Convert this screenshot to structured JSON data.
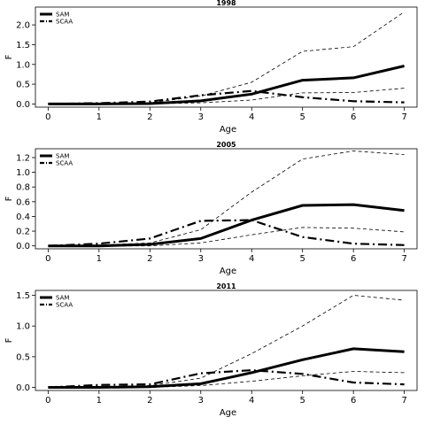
{
  "chart_data": [
    {
      "type": "line",
      "title": "1998",
      "xlabel": "Age",
      "ylabel": "F",
      "x": [
        0,
        1,
        2,
        3,
        4,
        5,
        6,
        7
      ],
      "xlim": [
        -0.25,
        7.25
      ],
      "ylim": [
        -0.08,
        2.45
      ],
      "yticks": [
        0.0,
        0.5,
        1.0,
        1.5,
        2.0
      ],
      "ytick_labels": [
        "0.0",
        "0.5",
        "1.0",
        "1.5",
        "2.0"
      ],
      "legend_position": "top-left",
      "series": [
        {
          "name": "SAM",
          "style": "thick-solid",
          "values": [
            0.0,
            0.0,
            0.01,
            0.08,
            0.25,
            0.6,
            0.66,
            0.96
          ]
        },
        {
          "name": "SCAA",
          "style": "dashdot",
          "values": [
            0.0,
            0.02,
            0.06,
            0.22,
            0.33,
            0.17,
            0.07,
            0.04
          ]
        },
        {
          "style": "thin-dashed",
          "values": [
            0.0,
            0.01,
            0.03,
            0.2,
            0.55,
            1.33,
            1.45,
            2.33
          ]
        },
        {
          "style": "thin-dashed",
          "values": [
            0.0,
            0.0,
            0.0,
            0.03,
            0.1,
            0.28,
            0.29,
            0.4
          ]
        }
      ]
    },
    {
      "type": "line",
      "title": "2005",
      "xlabel": "Age",
      "ylabel": "F",
      "x": [
        0,
        1,
        2,
        3,
        4,
        5,
        6,
        7
      ],
      "xlim": [
        -0.25,
        7.25
      ],
      "ylim": [
        -0.04,
        1.32
      ],
      "yticks": [
        0.0,
        0.2,
        0.4,
        0.6,
        0.8,
        1.0,
        1.2
      ],
      "ytick_labels": [
        "0.0",
        "0.2",
        "0.4",
        "0.6",
        "0.8",
        "1.0",
        "1.2"
      ],
      "legend_position": "top-left",
      "series": [
        {
          "name": "SAM",
          "style": "thick-solid",
          "values": [
            0.0,
            0.0,
            0.02,
            0.1,
            0.35,
            0.55,
            0.56,
            0.48
          ]
        },
        {
          "name": "SCAA",
          "style": "dashdot",
          "values": [
            0.0,
            0.03,
            0.1,
            0.34,
            0.35,
            0.12,
            0.03,
            0.01
          ]
        },
        {
          "style": "thin-dashed",
          "values": [
            0.0,
            0.01,
            0.04,
            0.22,
            0.73,
            1.18,
            1.29,
            1.24
          ]
        },
        {
          "style": "thin-dashed",
          "values": [
            0.0,
            0.0,
            0.0,
            0.04,
            0.15,
            0.25,
            0.24,
            0.19
          ]
        }
      ]
    },
    {
      "type": "line",
      "title": "2011",
      "xlabel": "Age",
      "ylabel": "F",
      "x": [
        0,
        1,
        2,
        3,
        4,
        5,
        6,
        7
      ],
      "xlim": [
        -0.25,
        7.25
      ],
      "ylim": [
        -0.05,
        1.58
      ],
      "yticks": [
        0.0,
        0.5,
        1.0,
        1.5
      ],
      "ytick_labels": [
        "0.0",
        "0.5",
        "1.0",
        "1.5"
      ],
      "legend_position": "top-left",
      "series": [
        {
          "name": "SAM",
          "style": "thick-solid",
          "values": [
            0.0,
            0.0,
            0.01,
            0.06,
            0.24,
            0.45,
            0.63,
            0.58
          ]
        },
        {
          "name": "SCAA",
          "style": "dashdot",
          "values": [
            0.0,
            0.04,
            0.05,
            0.23,
            0.28,
            0.22,
            0.08,
            0.05
          ]
        },
        {
          "style": "thin-dashed",
          "values": [
            0.0,
            0.01,
            0.03,
            0.15,
            0.55,
            1.0,
            1.5,
            1.42
          ]
        },
        {
          "style": "thin-dashed",
          "values": [
            0.0,
            0.0,
            0.0,
            0.03,
            0.1,
            0.19,
            0.26,
            0.24
          ]
        }
      ]
    }
  ]
}
